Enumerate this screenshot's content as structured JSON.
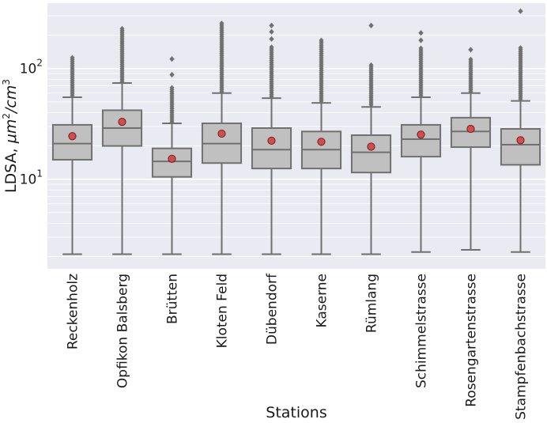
{
  "chart_data": {
    "type": "boxplot",
    "xlabel": "Stations",
    "ylabel_main": "LDSA, ",
    "ylabel_unit_1": "μm",
    "ylabel_sup_1": "2",
    "ylabel_sep": "/",
    "ylabel_unit_2": "cm",
    "ylabel_sup_2": "3",
    "yscale": "log",
    "ylim": [
      1.55,
      390
    ],
    "yticks": [
      {
        "value": 10,
        "base": "10",
        "exp": "1"
      },
      {
        "value": 100,
        "base": "10",
        "exp": "2"
      }
    ],
    "grid": true,
    "background": "#eaeaf2",
    "box_color": "#c0c0c0",
    "line_color": "#707070",
    "mean_color": "#d44c4e",
    "categories": [
      "Reckenholz",
      "Opfikon Balsberg",
      "Brütten",
      "Kloten Feld",
      "Dübendorf",
      "Kaserne",
      "Rümlang",
      "Schimmelstrasse",
      "Rosengartenstrasse",
      "Stampfenbachstrasse"
    ],
    "boxes": [
      {
        "whislo": 2.1,
        "q1": 15.0,
        "med": 21.0,
        "q3": 31.0,
        "whishi": 55,
        "mean": 24.5,
        "fliers_from": 57,
        "fliers_to": 128,
        "sparse_fliers": []
      },
      {
        "whislo": 2.1,
        "q1": 20.0,
        "med": 29.0,
        "q3": 42.0,
        "whishi": 74,
        "mean": 33.0,
        "fliers_from": 76,
        "fliers_to": 235,
        "sparse_fliers": []
      },
      {
        "whislo": 2.1,
        "q1": 10.5,
        "med": 14.5,
        "q3": 19.0,
        "whishi": 32,
        "mean": 15.3,
        "fliers_from": 33,
        "fliers_to": 68,
        "sparse_fliers": [
          88,
          122
        ]
      },
      {
        "whislo": 2.1,
        "q1": 14.0,
        "med": 21.0,
        "q3": 32.0,
        "whishi": 60,
        "mean": 25.8,
        "fliers_from": 62,
        "fliers_to": 260,
        "sparse_fliers": []
      },
      {
        "whislo": 2.1,
        "q1": 12.5,
        "med": 18.5,
        "q3": 29.0,
        "whishi": 54,
        "mean": 22.3,
        "fliers_from": 56,
        "fliers_to": 160,
        "sparse_fliers": [
          185,
          215,
          245
        ]
      },
      {
        "whislo": 2.1,
        "q1": 12.5,
        "med": 18.5,
        "q3": 27.0,
        "whishi": 49,
        "mean": 21.8,
        "fliers_from": 51,
        "fliers_to": 185,
        "sparse_fliers": []
      },
      {
        "whislo": 2.1,
        "q1": 11.5,
        "med": 17.5,
        "q3": 25.0,
        "whishi": 45,
        "mean": 19.7,
        "fliers_from": 47,
        "fliers_to": 110,
        "sparse_fliers": [
          245
        ]
      },
      {
        "whislo": 2.2,
        "q1": 16.0,
        "med": 23.0,
        "q3": 31.0,
        "whishi": 55,
        "mean": 25.3,
        "fliers_from": 57,
        "fliers_to": 155,
        "sparse_fliers": [
          180,
          210
        ]
      },
      {
        "whislo": 2.3,
        "q1": 19.5,
        "med": 27.0,
        "q3": 36.0,
        "whishi": 60,
        "mean": 28.5,
        "fliers_from": 62,
        "fliers_to": 125,
        "sparse_fliers": [
          148
        ]
      },
      {
        "whislo": 2.2,
        "q1": 13.5,
        "med": 20.5,
        "q3": 28.5,
        "whishi": 51,
        "mean": 22.5,
        "fliers_from": 53,
        "fliers_to": 160,
        "sparse_fliers": [
          330
        ]
      }
    ]
  }
}
